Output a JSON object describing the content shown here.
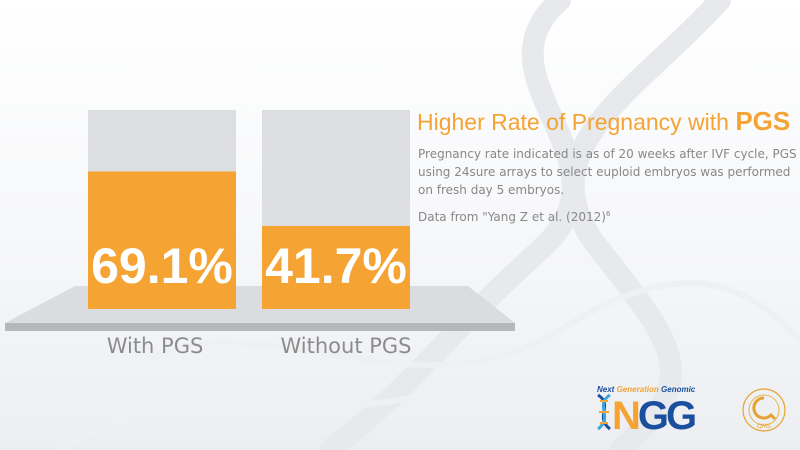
{
  "chart_data": {
    "type": "bar",
    "categories": [
      "With PGS",
      "Without PGS"
    ],
    "values": [
      69.1,
      41.7
    ],
    "value_labels": [
      "69.1%",
      "41.7%"
    ],
    "ylim": [
      0,
      100
    ],
    "title": "",
    "xlabel": "",
    "ylabel": "",
    "bar_color": "#f5a333",
    "track_color": "#dcdee1",
    "grid": false
  },
  "info": {
    "title_prefix": "Higher Rate of Pregnancy with ",
    "title_highlight": "PGS",
    "description": "Pregnancy rate indicated is as of 20 weeks after IVF cycle, PGS using 24sure arrays to select euploid embryos was performed on fresh day 5 embryos.",
    "source": "Data from \"Yang Z et al. (2012)",
    "source_ref": "6"
  },
  "logos": {
    "ngg_tagline_part1": "Next ",
    "ngg_tagline_part2": "Generation",
    "ngg_tagline_part3": " Genomic",
    "ngg_letter_n": "N",
    "ngg_letters_gg": "GG",
    "qms_text": "QUALITY ASSURANCE QMS",
    "qms_icon": "qms-seal-icon",
    "ngg_icon": "dna-helix-icon"
  },
  "colors": {
    "accent": "#f5a333",
    "brand_blue": "#1a4fa0",
    "text_gray": "#888888"
  }
}
